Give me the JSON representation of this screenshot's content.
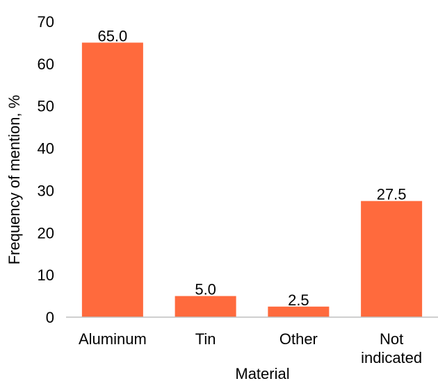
{
  "chart_data": {
    "type": "bar",
    "title": "",
    "categories": [
      "Aluminum",
      "Tin",
      "Other",
      "Not indicated"
    ],
    "category_lines": [
      [
        "Aluminum"
      ],
      [
        "Tin"
      ],
      [
        "Other"
      ],
      [
        "Not",
        "indicated"
      ]
    ],
    "values": [
      65.0,
      5.0,
      2.5,
      27.5
    ],
    "value_labels": [
      "65.0",
      "5.0",
      "2.5",
      "27.5"
    ],
    "xlabel": "Material",
    "ylabel": "Frequency of mention, %",
    "ylim": [
      0,
      70
    ],
    "yticks": [
      0,
      10,
      20,
      30,
      40,
      50,
      60,
      70
    ],
    "grid": false,
    "legend": "none",
    "bar_color": "#FF6A3D",
    "axis_color": "#BFBFBF"
  }
}
